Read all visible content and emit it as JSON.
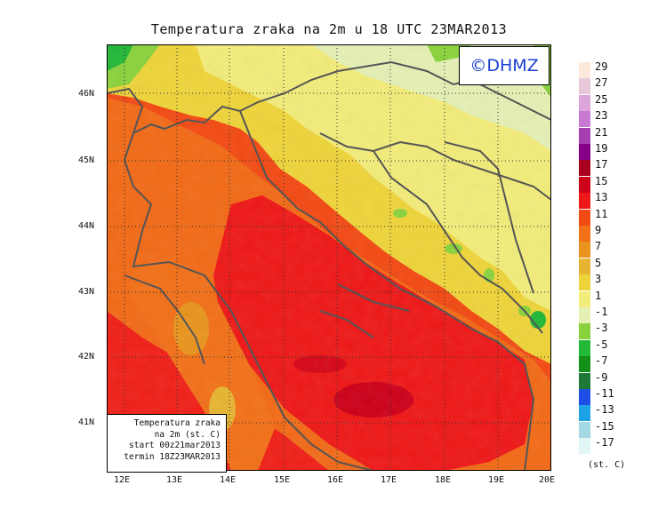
{
  "title": "Temperatura zraka na 2m u 18 UTC 23MAR2013",
  "logo": "©DHMZ",
  "x_ticks": [
    "12E",
    "13E",
    "14E",
    "15E",
    "16E",
    "17E",
    "18E",
    "19E",
    "20E"
  ],
  "y_ticks": [
    "46N",
    "45N",
    "44N",
    "43N",
    "42N",
    "41N"
  ],
  "legend_labels": [
    "29",
    "27",
    "25",
    "23",
    "21",
    "19",
    "17",
    "15",
    "13",
    "11",
    "9",
    "7",
    "5",
    "3",
    "1",
    "-1",
    "-3",
    "-5",
    "-7",
    "-9",
    "-11",
    "-13",
    "-15",
    "-17"
  ],
  "legend_colors": [
    "#fbeadc",
    "#e8c8d8",
    "#dca6dc",
    "#c87ad2",
    "#a63fb2",
    "#840088",
    "#a8001e",
    "#cc0018",
    "#ee1818",
    "#f24a14",
    "#f27018",
    "#e8941e",
    "#e6b430",
    "#eed43a",
    "#f2ec7a",
    "#e4f0b4",
    "#8ad23c",
    "#22b838",
    "#14901a",
    "#1e7836",
    "#1e4ee6",
    "#1ea2e6",
    "#a4d8e4",
    "#e2f6f6"
  ],
  "unit": "(st. C)",
  "info": {
    "line1": "Temperatura zraka",
    "line2": "na 2m (st. C)",
    "line3": "start 00z21mar2013",
    "line4": "termin 18Z23MAR2013"
  }
}
